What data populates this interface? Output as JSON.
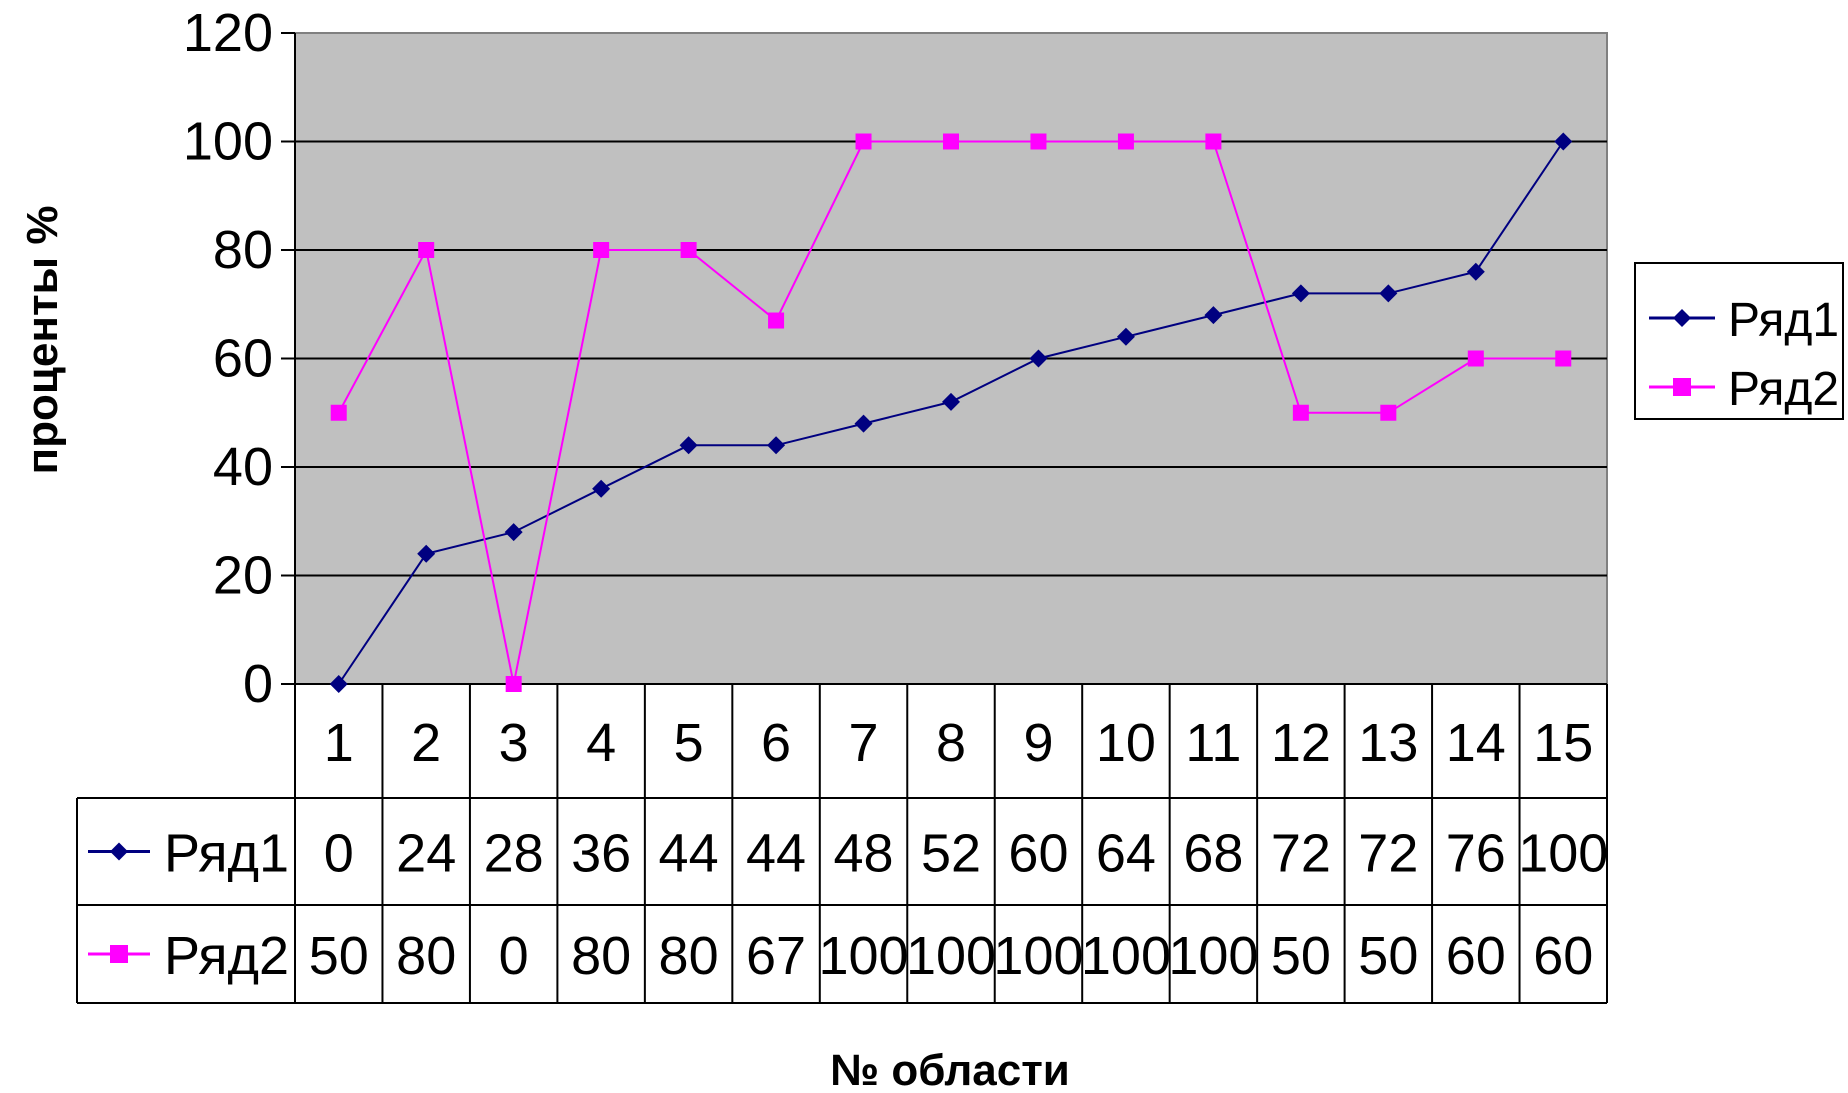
{
  "chart_data": {
    "type": "line",
    "categories": [
      "1",
      "2",
      "3",
      "4",
      "5",
      "6",
      "7",
      "8",
      "9",
      "10",
      "11",
      "12",
      "13",
      "14",
      "15"
    ],
    "series": [
      {
        "name": "Ряд1",
        "color": "#000080",
        "marker": "diamond",
        "values": [
          0,
          24,
          28,
          36,
          44,
          44,
          48,
          52,
          60,
          64,
          68,
          72,
          72,
          76,
          100
        ]
      },
      {
        "name": "Ряд2",
        "color": "#ff00ff",
        "marker": "square",
        "values": [
          50,
          80,
          0,
          80,
          80,
          67,
          100,
          100,
          100,
          100,
          100,
          50,
          50,
          60,
          60
        ]
      }
    ],
    "ylim": [
      0,
      120
    ],
    "yticks": [
      0,
      20,
      40,
      60,
      80,
      100,
      120
    ],
    "ylabel": "проценты %",
    "xlabel": "№ области",
    "plot_background": "#c0c0c0",
    "grid": true,
    "legend_position": "right",
    "data_table": true
  }
}
